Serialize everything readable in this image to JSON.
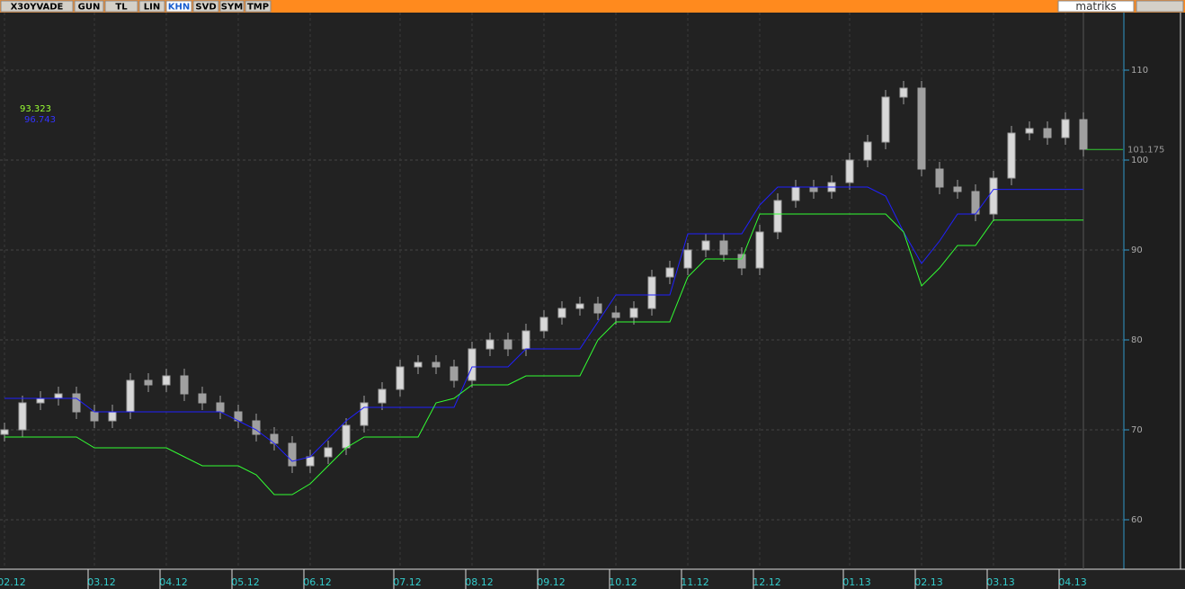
{
  "toolbar": {
    "tabs": [
      "X30YVADE",
      "GUN",
      "TL",
      "LIN",
      "KHN",
      "SVD",
      "SYM",
      "TMP"
    ],
    "active_tab": 4,
    "brand": "matriks"
  },
  "chart_data": {
    "type": "candlestick",
    "categories": [
      "02.12",
      null,
      null,
      null,
      null,
      "03.12",
      null,
      null,
      null,
      "04.12",
      null,
      null,
      null,
      "05.12",
      null,
      null,
      null,
      "06.12",
      null,
      null,
      null,
      null,
      "07.12",
      null,
      null,
      null,
      "08.12",
      null,
      null,
      null,
      "09.12",
      null,
      null,
      null,
      "10.12",
      null,
      null,
      null,
      "11.12",
      null,
      null,
      null,
      "12.12",
      null,
      null,
      null,
      null,
      "01.13",
      null,
      null,
      null,
      "02.13",
      null,
      null,
      null,
      "03.13",
      null,
      null,
      null,
      "04.13",
      null
    ],
    "open": [
      69.5,
      70,
      73,
      73.5,
      74,
      72,
      71,
      72,
      75.5,
      75,
      76,
      74,
      73,
      72,
      71,
      69.5,
      68.5,
      66,
      67,
      68,
      70.5,
      73,
      74.5,
      77,
      77.5,
      77,
      75.5,
      79,
      80,
      79,
      81,
      82.5,
      83.5,
      84,
      83,
      82.5,
      83.5,
      87,
      88,
      90,
      91,
      89.5,
      88,
      92,
      95.5,
      97,
      96.5,
      97.5,
      100,
      102,
      107,
      108,
      99,
      97,
      96.5,
      94,
      98,
      103,
      103.5,
      102.5,
      104.5
    ],
    "high": [
      70.8,
      73.8,
      74.3,
      74.8,
      74.8,
      72.8,
      72.8,
      76.3,
      76.3,
      76.8,
      76.8,
      74.8,
      73.8,
      72.8,
      71.8,
      70.3,
      69.3,
      67.8,
      68.8,
      71.3,
      73.8,
      75.3,
      77.8,
      78.3,
      78.3,
      77.8,
      79.8,
      80.8,
      80.8,
      81.8,
      83.3,
      84.3,
      84.8,
      84.8,
      83.8,
      84.3,
      87.8,
      88.8,
      90.8,
      91.8,
      91.8,
      90.3,
      92.8,
      96.3,
      97.8,
      97.8,
      98.3,
      100.8,
      102.8,
      107.8,
      108.8,
      108.8,
      99.8,
      97.8,
      97.3,
      98.8,
      103.8,
      104.3,
      104.3,
      105.3,
      105.3
    ],
    "low": [
      68.7,
      69.2,
      72.2,
      72.7,
      71.2,
      70.2,
      70.2,
      71.2,
      74.2,
      74.2,
      73.2,
      72.2,
      71.2,
      70.2,
      68.7,
      67.7,
      65.2,
      65.2,
      66.2,
      67.2,
      69.7,
      72.2,
      73.7,
      76.2,
      76.2,
      74.7,
      74.7,
      78.2,
      78.2,
      78.2,
      80.2,
      81.7,
      82.7,
      82.2,
      81.7,
      81.7,
      82.7,
      86.2,
      87.2,
      89.2,
      88.7,
      87.2,
      87.2,
      91.2,
      94.7,
      95.7,
      95.7,
      96.7,
      99.2,
      101.2,
      106.2,
      98.2,
      96.2,
      95.7,
      93.2,
      93.2,
      97.2,
      102.2,
      101.7,
      101.7,
      100.4
    ],
    "close": [
      70,
      73,
      73.5,
      74,
      72,
      71,
      72,
      75.5,
      75,
      76,
      74,
      73,
      72,
      71,
      69.5,
      68.5,
      66,
      67,
      68,
      70.5,
      73,
      74.5,
      77,
      77.5,
      77,
      75.5,
      79,
      80,
      79,
      81,
      82.5,
      83.5,
      84,
      83,
      82.5,
      83.5,
      87,
      88,
      90,
      91,
      89.5,
      88,
      92,
      95.5,
      97,
      96.5,
      97.5,
      100,
      102,
      107,
      108,
      99,
      97,
      96.5,
      94,
      98,
      103,
      103.5,
      102.5,
      104.5,
      101.2
    ],
    "candle_color": "#a0a0a0",
    "lines": [
      {
        "color": "#2020ff",
        "values": [
          73.5,
          73.5,
          73.5,
          73.5,
          73.5,
          72,
          72,
          72,
          72,
          72,
          72,
          72,
          72,
          71,
          70,
          68.5,
          66.5,
          67,
          69,
          71,
          72.5,
          72.5,
          72.5,
          72.5,
          72.5,
          72.5,
          77,
          77,
          77,
          79,
          79,
          79,
          79,
          82,
          85,
          85,
          85,
          85,
          91.8,
          91.8,
          91.8,
          91.8,
          95,
          97,
          97,
          97,
          97,
          97,
          97,
          96,
          92,
          88.5,
          91,
          94,
          94,
          96.743,
          96.743,
          96.743,
          96.743,
          96.743,
          96.743
        ]
      },
      {
        "color": "#33ff33",
        "values": [
          69.2,
          69.2,
          69.2,
          69.2,
          69.2,
          68,
          68,
          68,
          68,
          68,
          67,
          66,
          66,
          66,
          65,
          62.8,
          62.8,
          64,
          66,
          68,
          69.2,
          69.2,
          69.2,
          69.2,
          73,
          73.5,
          75,
          75,
          75,
          76,
          76,
          76,
          76,
          80,
          82,
          82,
          82,
          82,
          87,
          89,
          89,
          89,
          94,
          94,
          94,
          94,
          94,
          94,
          94,
          94,
          92,
          86,
          88,
          90.5,
          90.5,
          93.323,
          93.323,
          93.323,
          93.323,
          93.323,
          93.323
        ]
      }
    ],
    "last_price": 101.175,
    "ylim": [
      54.6,
      116.4
    ],
    "yticks": [
      60,
      70,
      80,
      90,
      100,
      110
    ],
    "grid": true
  }
}
